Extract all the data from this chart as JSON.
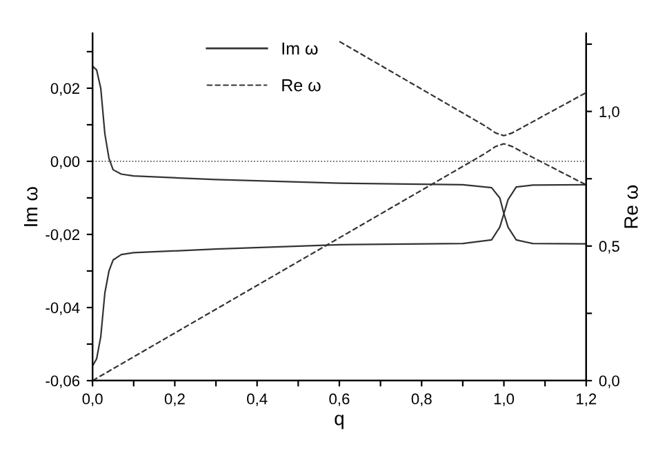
{
  "chart_data": {
    "type": "line",
    "xlabel": "q",
    "ylabel": "Im ω",
    "y2label": "Re ω",
    "xlim": [
      0,
      1.2
    ],
    "xticks": [
      {
        "value": 0,
        "label": "0,0"
      },
      {
        "value": 0.1,
        "label": null
      },
      {
        "value": 0.2,
        "label": "0,2"
      },
      {
        "value": 0.3,
        "label": null
      },
      {
        "value": 0.4,
        "label": "0,4"
      },
      {
        "value": 0.5,
        "label": null
      },
      {
        "value": 0.6,
        "label": "0,6"
      },
      {
        "value": 0.7,
        "label": null
      },
      {
        "value": 0.8,
        "label": "0,8"
      },
      {
        "value": 0.9,
        "label": null
      },
      {
        "value": 1.0,
        "label": "1,0"
      },
      {
        "value": 1.1,
        "label": null
      },
      {
        "value": 1.2,
        "label": "1,2"
      }
    ],
    "ylim": [
      -0.06,
      0.035
    ],
    "yticks": [
      {
        "value": -0.06,
        "label": "-0,06"
      },
      {
        "value": -0.05,
        "label": null
      },
      {
        "value": -0.04,
        "label": "-0,04"
      },
      {
        "value": -0.03,
        "label": null
      },
      {
        "value": -0.02,
        "label": "-0,02"
      },
      {
        "value": -0.01,
        "label": null
      },
      {
        "value": 0,
        "label": "0,00"
      },
      {
        "value": 0.01,
        "label": null
      },
      {
        "value": 0.02,
        "label": "0,02"
      },
      {
        "value": 0.03,
        "label": null
      }
    ],
    "y2lim": [
      0,
      1.29
    ],
    "y2ticks": [
      {
        "value": 0,
        "label": "0,0"
      },
      {
        "value": 0.25,
        "label": null
      },
      {
        "value": 0.5,
        "label": "0,5"
      },
      {
        "value": 0.75,
        "label": null
      },
      {
        "value": 1.0,
        "label": "1,0"
      },
      {
        "value": 1.25,
        "label": null
      }
    ],
    "legend": "top left",
    "grid": false,
    "ref_lines": [
      {
        "axis": "y",
        "value": 0,
        "color": "#555555",
        "line_style": "dotted"
      }
    ],
    "series": [
      {
        "name": "Im ω",
        "color": "#333333",
        "line_style": "solid",
        "x": [
          0,
          0.01,
          0.02,
          0.03,
          0.04,
          0.05,
          0.07,
          0.1,
          0.3,
          0.6,
          0.9,
          0.97,
          0.99,
          1.0,
          1.01,
          1.03,
          1.07,
          1.2
        ],
        "values": [
          0.026,
          0.025,
          0.02,
          0.0075,
          0.0008,
          -0.0023,
          -0.0035,
          -0.004,
          -0.005,
          -0.006,
          -0.0064,
          -0.0072,
          -0.01,
          -0.0143,
          -0.018,
          -0.0215,
          -0.0225,
          -0.0226
        ]
      },
      {
        "color": "#333333",
        "line_style": "solid",
        "x": [
          0,
          0.01,
          0.02,
          0.03,
          0.04,
          0.05,
          0.07,
          0.1,
          0.3,
          0.6,
          0.9,
          0.97,
          0.99,
          1.0,
          1.01,
          1.03,
          1.07,
          1.2
        ],
        "values": [
          -0.056,
          -0.054,
          -0.048,
          -0.036,
          -0.03,
          -0.027,
          -0.0255,
          -0.025,
          -0.024,
          -0.0228,
          -0.0225,
          -0.0215,
          -0.018,
          -0.0143,
          -0.0105,
          -0.007,
          -0.0065,
          -0.0064
        ]
      },
      {
        "name": "Re ω",
        "color": "#333333",
        "line_style": "dashed",
        "axis": "y2",
        "x": [
          0,
          0.95,
          0.98,
          1.0,
          1.02,
          1.05,
          1.2
        ],
        "values": [
          0,
          0.84,
          0.87,
          0.88,
          0.87,
          0.845,
          0.727
        ]
      },
      {
        "color": "#333333",
        "line_style": "dashed",
        "axis": "y2",
        "x": [
          0.6,
          0.95,
          0.98,
          1.0,
          1.02,
          1.05,
          1.2
        ],
        "values": [
          1.26,
          0.95,
          0.92,
          0.91,
          0.92,
          0.945,
          1.07
        ]
      }
    ]
  }
}
